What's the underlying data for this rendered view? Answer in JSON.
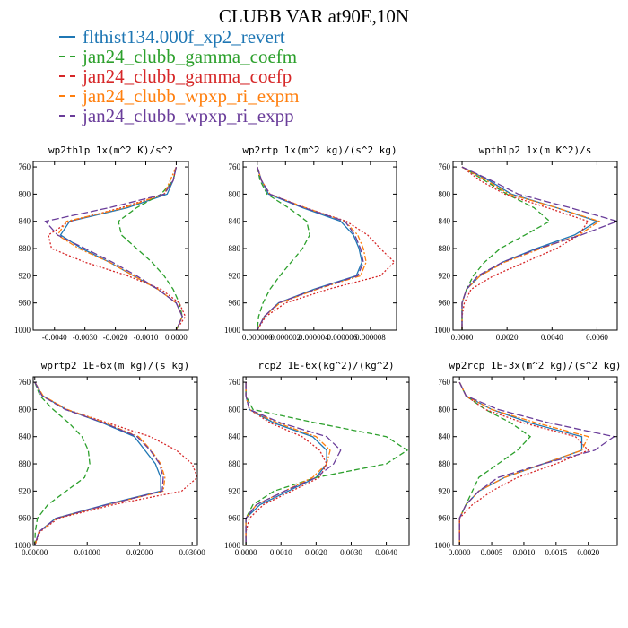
{
  "title": "CLUBB VAR at90E,10N",
  "colors": {
    "flthist134.000f_xp2_revert": "#1f77b4",
    "jan24_clubb_gamma_coefm": "#2ca02c",
    "jan24_clubb_gamma_coefp": "#d62728",
    "jan24_clubb_wpxp_ri_expm": "#ff7f0e",
    "jan24_clubb_wpxp_ri_expp": "#6a3d9a"
  },
  "legend": [
    {
      "name": "flthist134.000f_xp2_revert",
      "color": "#1f77b4",
      "dash": "none"
    },
    {
      "name": "jan24_clubb_gamma_coefm",
      "color": "#2ca02c",
      "dash": "6,3"
    },
    {
      "name": "jan24_clubb_gamma_coefp",
      "color": "#d62728",
      "dash": "2,2"
    },
    {
      "name": "jan24_clubb_wpxp_ri_expm",
      "color": "#ff7f0e",
      "dash": "6,2,2,2"
    },
    {
      "name": "jan24_clubb_wpxp_ri_expp",
      "color": "#6a3d9a",
      "dash": "8,3"
    }
  ],
  "chart_data": [
    {
      "type": "line",
      "title": "wp2thlp  1x(m^2 K)/s^2",
      "xlim": [
        -0.0047,
        0.0004
      ],
      "ylim": [
        1000,
        752
      ],
      "yticks": [
        760,
        800,
        840,
        880,
        920,
        960,
        1000
      ],
      "xticks": [
        -0.004,
        -0.003,
        -0.002,
        -0.001,
        0.0
      ],
      "xtick_labels": [
        "-0.0040",
        "-0.0030",
        "-0.0020",
        "-0.0010",
        "0.0000"
      ],
      "levels": [
        760,
        780,
        800,
        820,
        840,
        860,
        880,
        900,
        920,
        940,
        960,
        980,
        1000
      ],
      "series": [
        {
          "name": "flthist134.000f_xp2_revert",
          "x": [
            0.0,
            -0.0001,
            -0.0003,
            -0.0016,
            -0.0035,
            -0.0038,
            -0.0031,
            -0.0022,
            -0.0014,
            -0.0006,
            0.0,
            0.0002,
            0.0
          ]
        },
        {
          "name": "jan24_clubb_gamma_coefm",
          "x": [
            0.0,
            -0.0001,
            -0.0005,
            -0.0013,
            -0.0019,
            -0.0018,
            -0.0013,
            -0.0008,
            -0.0004,
            -0.0001,
            0.0001,
            0.0002,
            0.0
          ]
        },
        {
          "name": "jan24_clubb_gamma_coefp",
          "x": [
            0.0,
            -0.0001,
            -0.0004,
            -0.0018,
            -0.0035,
            -0.0042,
            -0.0041,
            -0.003,
            -0.0016,
            -0.0005,
            0.0001,
            0.0003,
            0.0
          ]
        },
        {
          "name": "jan24_clubb_wpxp_ri_expm",
          "x": [
            0.0,
            -0.0002,
            -0.0004,
            -0.0017,
            -0.0036,
            -0.0039,
            -0.0032,
            -0.0022,
            -0.0014,
            -0.0006,
            0.0,
            0.0002,
            0.0
          ]
        },
        {
          "name": "jan24_clubb_wpxp_ri_expp",
          "x": [
            0.0,
            -0.0001,
            -0.0004,
            -0.0022,
            -0.0043,
            -0.0039,
            -0.003,
            -0.0021,
            -0.0013,
            -0.0006,
            0.0,
            0.0002,
            0.0
          ]
        }
      ]
    },
    {
      "type": "line",
      "title": "wp2rtp  1x(m^2 kg)/(s^2 kg)",
      "xlim": [
        -1e-06,
        9.85e-06
      ],
      "ylim": [
        1000,
        752
      ],
      "yticks": [
        760,
        800,
        840,
        880,
        920,
        960,
        1000
      ],
      "xticks": [
        0.0,
        2e-06,
        4e-06,
        6e-06,
        8e-06
      ],
      "xtick_labels": [
        "0.000000",
        "0.000002",
        "0.000004",
        "0.000006",
        "0.000008"
      ],
      "levels": [
        760,
        780,
        800,
        820,
        840,
        860,
        880,
        900,
        920,
        940,
        960,
        980,
        1000
      ],
      "series": [
        {
          "name": "flthist134.000f_xp2_revert",
          "x": [
            0.0,
            3e-07,
            8e-07,
            3.2e-06,
            5.9e-06,
            6.8e-06,
            7.2e-06,
            7.4e-06,
            7e-06,
            4e-06,
            1.5e-06,
            5e-07,
            0.0
          ]
        },
        {
          "name": "jan24_clubb_gamma_coefm",
          "x": [
            0.0,
            2e-07,
            7e-07,
            2.2e-06,
            3.5e-06,
            3.7e-06,
            3.2e-06,
            2.4e-06,
            1.6e-06,
            9e-07,
            4e-07,
            1e-07,
            0.0
          ]
        },
        {
          "name": "jan24_clubb_gamma_coefp",
          "x": [
            0.0,
            3e-07,
            9e-07,
            3.4e-06,
            6.3e-06,
            7.8e-06,
            8.7e-06,
            9.7e-06,
            8.7e-06,
            5e-06,
            2e-06,
            6e-07,
            0.0
          ]
        },
        {
          "name": "jan24_clubb_wpxp_ri_expm",
          "x": [
            0.0,
            3e-07,
            9e-07,
            3.4e-06,
            6.2e-06,
            7.1e-06,
            7.5e-06,
            7.7e-06,
            7.3e-06,
            4.2e-06,
            1.6e-06,
            5e-07,
            0.0
          ]
        },
        {
          "name": "jan24_clubb_wpxp_ri_expp",
          "x": [
            0.0,
            3e-07,
            9e-07,
            3.3e-06,
            6.2e-06,
            6.9e-06,
            7.3e-06,
            7.5e-06,
            7.1e-06,
            4.1e-06,
            1.5e-06,
            5e-07,
            0.0
          ]
        }
      ]
    },
    {
      "type": "line",
      "title": "wpthlp2  1x(m K^2)/s",
      "xlim": [
        -0.0004,
        0.0069
      ],
      "ylim": [
        1000,
        752
      ],
      "yticks": [
        760,
        800,
        840,
        880,
        920,
        960,
        1000
      ],
      "xticks": [
        0.0,
        0.002,
        0.004,
        0.006
      ],
      "xtick_labels": [
        "0.0000",
        "0.0020",
        "0.0040",
        "0.0060"
      ],
      "levels": [
        760,
        780,
        800,
        820,
        840,
        860,
        880,
        900,
        920,
        940,
        960,
        980,
        1000
      ],
      "series": [
        {
          "name": "flthist134.000f_xp2_revert",
          "x": [
            0.0,
            0.0012,
            0.0022,
            0.0042,
            0.006,
            0.005,
            0.0033,
            0.0018,
            0.0008,
            0.0002,
            0.0,
            0.0,
            0.0
          ]
        },
        {
          "name": "jan24_clubb_gamma_coefm",
          "x": [
            0.0,
            0.001,
            0.002,
            0.0032,
            0.0039,
            0.0028,
            0.0017,
            0.001,
            0.0005,
            0.0002,
            0.0,
            0.0,
            0.0
          ]
        },
        {
          "name": "jan24_clubb_gamma_coefp",
          "x": [
            0.0,
            0.0008,
            0.0019,
            0.0038,
            0.0056,
            0.0052,
            0.0042,
            0.0028,
            0.0014,
            0.0004,
            0.0001,
            0.0,
            0.0
          ]
        },
        {
          "name": "jan24_clubb_wpxp_ri_expm",
          "x": [
            0.0,
            0.0011,
            0.0021,
            0.0042,
            0.0061,
            0.0052,
            0.0035,
            0.0019,
            0.0008,
            0.0002,
            0.0,
            0.0,
            0.0
          ]
        },
        {
          "name": "jan24_clubb_wpxp_ri_expp",
          "x": [
            0.0,
            0.0013,
            0.0025,
            0.0048,
            0.0069,
            0.0053,
            0.0034,
            0.0018,
            0.0007,
            0.0002,
            0.0,
            0.0,
            0.0
          ]
        }
      ]
    },
    {
      "type": "line",
      "title": "wprtp2  1E-6x(m kg)/(s kg)",
      "xlim": [
        -0.0003,
        0.031
      ],
      "ylim": [
        1000,
        752
      ],
      "yticks": [
        760,
        800,
        840,
        880,
        920,
        960,
        1000
      ],
      "xticks": [
        0.0,
        0.01,
        0.02,
        0.03
      ],
      "xtick_labels": [
        "0.00000",
        "0.01000",
        "0.02000",
        "0.03000"
      ],
      "levels": [
        760,
        780,
        800,
        820,
        840,
        860,
        880,
        900,
        920,
        940,
        960,
        980,
        1000
      ],
      "series": [
        {
          "name": "flthist134.000f_xp2_revert",
          "x": [
            0.0,
            0.0015,
            0.006,
            0.013,
            0.019,
            0.021,
            0.023,
            0.024,
            0.024,
            0.0135,
            0.004,
            0.0008,
            0.0
          ]
        },
        {
          "name": "jan24_clubb_gamma_coefm",
          "x": [
            0.0,
            0.001,
            0.0035,
            0.0065,
            0.009,
            0.0102,
            0.0105,
            0.0095,
            0.006,
            0.0025,
            0.0005,
            0.0001,
            0.0
          ]
        },
        {
          "name": "jan24_clubb_gamma_coefp",
          "x": [
            0.0,
            0.0015,
            0.006,
            0.014,
            0.022,
            0.027,
            0.03,
            0.031,
            0.028,
            0.015,
            0.0045,
            0.001,
            0.0
          ]
        },
        {
          "name": "jan24_clubb_wpxp_ri_expm",
          "x": [
            0.0,
            0.0016,
            0.0062,
            0.0135,
            0.0198,
            0.0222,
            0.024,
            0.0248,
            0.0245,
            0.014,
            0.0042,
            0.0008,
            0.0
          ]
        },
        {
          "name": "jan24_clubb_wpxp_ri_expp",
          "x": [
            0.0,
            0.0014,
            0.0058,
            0.0132,
            0.0195,
            0.022,
            0.0238,
            0.0245,
            0.0243,
            0.0138,
            0.0041,
            0.0008,
            0.0
          ]
        }
      ]
    },
    {
      "type": "line",
      "title": "rcp2  1E-6x(kg^2)/(kg^2)",
      "xlim": [
        -8e-05,
        0.00465
      ],
      "ylim": [
        1000,
        752
      ],
      "yticks": [
        760,
        800,
        840,
        880,
        920,
        960,
        1000
      ],
      "xticks": [
        0.0,
        0.001,
        0.002,
        0.003,
        0.004
      ],
      "xtick_labels": [
        "0.0000",
        "0.0010",
        "0.0020",
        "0.0030",
        "0.0040"
      ],
      "levels": [
        760,
        780,
        800,
        820,
        840,
        860,
        880,
        900,
        920,
        940,
        960,
        980,
        1000
      ],
      "series": [
        {
          "name": "flthist134.000f_xp2_revert",
          "x": [
            0.0,
            0.0,
            0.0001,
            0.0008,
            0.0019,
            0.0023,
            0.0023,
            0.002,
            0.0012,
            0.0004,
            0.0,
            0.0,
            0.0
          ]
        },
        {
          "name": "jan24_clubb_gamma_coefm",
          "x": [
            0.0,
            0.0,
            0.0002,
            0.002,
            0.004,
            0.0046,
            0.004,
            0.002,
            0.0008,
            0.0002,
            0.0,
            0.0,
            0.0
          ]
        },
        {
          "name": "jan24_clubb_gamma_coefp",
          "x": [
            0.0,
            0.0,
            0.0001,
            0.0007,
            0.0016,
            0.0021,
            0.0023,
            0.0021,
            0.0013,
            0.0005,
            0.0001,
            0.0,
            0.0
          ]
        },
        {
          "name": "jan24_clubb_wpxp_ri_expm",
          "x": [
            0.0,
            0.0,
            0.0001,
            0.0009,
            0.002,
            0.0024,
            0.0023,
            0.0019,
            0.0011,
            0.0003,
            0.0,
            0.0,
            0.0
          ]
        },
        {
          "name": "jan24_clubb_wpxp_ri_expp",
          "x": [
            0.0,
            0.0,
            0.0001,
            0.001,
            0.0023,
            0.0027,
            0.0025,
            0.002,
            0.0011,
            0.0003,
            0.0,
            0.0,
            0.0
          ]
        }
      ]
    },
    {
      "type": "line",
      "title": "wp2rcp  1E-3x(m^2 kg)/(s^2 kg)",
      "xlim": [
        -0.0001,
        0.00245
      ],
      "ylim": [
        1000,
        752
      ],
      "yticks": [
        760,
        800,
        840,
        880,
        920,
        960,
        1000
      ],
      "xticks": [
        0.0,
        0.0005,
        0.001,
        0.0015,
        0.002
      ],
      "xtick_labels": [
        "0.0000",
        "0.0005",
        "0.0010",
        "0.0015",
        "0.0020"
      ],
      "levels": [
        760,
        780,
        800,
        820,
        840,
        860,
        880,
        900,
        920,
        940,
        960,
        980,
        1000
      ],
      "series": [
        {
          "name": "flthist134.000f_xp2_revert",
          "x": [
            0.0,
            0.0001,
            0.0005,
            0.0011,
            0.0019,
            0.0019,
            0.0013,
            0.0007,
            0.0003,
            0.0001,
            0.0,
            0.0,
            0.0
          ]
        },
        {
          "name": "jan24_clubb_gamma_coefm",
          "x": [
            0.0,
            0.0001,
            0.0004,
            0.0008,
            0.0011,
            0.0009,
            0.0006,
            0.0003,
            0.0002,
            0.0001,
            0.0,
            0.0,
            0.0
          ]
        },
        {
          "name": "jan24_clubb_gamma_coefp",
          "x": [
            0.0,
            0.0001,
            0.0004,
            0.001,
            0.0018,
            0.002,
            0.0015,
            0.0009,
            0.0005,
            0.0002,
            0.0,
            0.0,
            0.0
          ]
        },
        {
          "name": "jan24_clubb_wpxp_ri_expm",
          "x": [
            0.0,
            0.0001,
            0.0005,
            0.0012,
            0.002,
            0.0019,
            0.0013,
            0.0007,
            0.0003,
            0.0001,
            0.0,
            0.0,
            0.0
          ]
        },
        {
          "name": "jan24_clubb_wpxp_ri_expp",
          "x": [
            0.0,
            0.0001,
            0.0006,
            0.0014,
            0.0024,
            0.0021,
            0.0013,
            0.0006,
            0.0003,
            0.0001,
            0.0,
            0.0,
            0.0
          ]
        }
      ]
    }
  ]
}
